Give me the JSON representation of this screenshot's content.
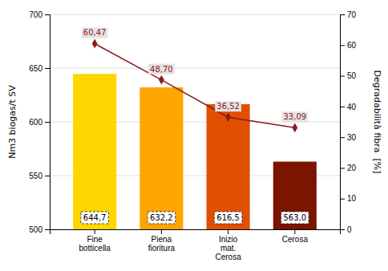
{
  "chart_data": {
    "type": "bar",
    "categories": [
      "Fine\nbotticella",
      "Piena\nfioritura",
      "Inizio\nmat.\nCerosa",
      "Cerosa"
    ],
    "series": [
      {
        "type": "bar",
        "colors": [
          "#FFD700",
          "#FFA500",
          "#E05000",
          "#7B1500"
        ],
        "values": [
          644.7,
          632.2,
          616.5,
          563.0
        ],
        "value_labels": [
          "644,7",
          "632,2",
          "616,5",
          "563,0"
        ],
        "data_labels": true
      },
      {
        "type": "line",
        "axis": "y2",
        "color": "#8B1A1A",
        "marker": "diamond",
        "values": [
          60.47,
          48.7,
          36.52,
          33.09
        ],
        "value_labels": [
          "60,47",
          "48,70",
          "36,52",
          "33,09"
        ],
        "data_labels": true
      }
    ],
    "y_label": "Nm3 biogas/t SV",
    "y2_label": "Degradabilità fibra  [%]",
    "ylim": [
      500,
      700
    ],
    "yticks": [
      500,
      550,
      600,
      650,
      700
    ],
    "y2lim": [
      0,
      70
    ],
    "y2ticks": [
      0,
      10,
      20,
      30,
      40,
      50,
      60,
      70
    ],
    "grid": true
  }
}
